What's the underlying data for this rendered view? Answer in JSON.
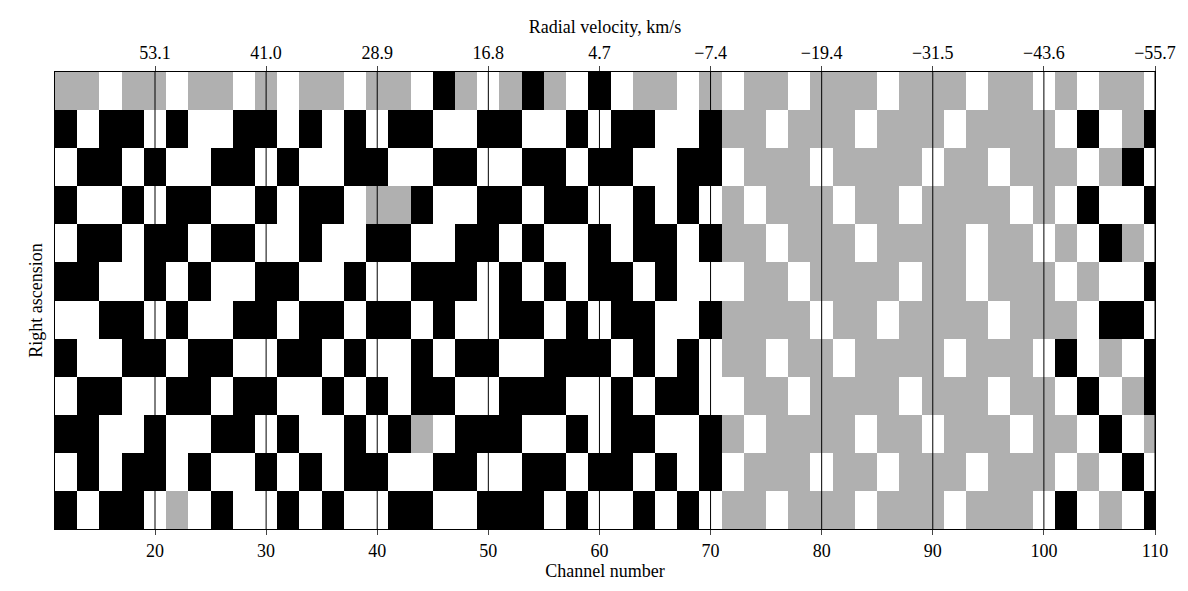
{
  "chart_data": {
    "type": "heatmap",
    "xlabel": "Channel number",
    "ylabel": "Right ascension",
    "x2label": "Radial velocity, km/s",
    "xlim": [
      11,
      110
    ],
    "xticks": [
      20,
      30,
      40,
      50,
      60,
      70,
      80,
      90,
      100,
      110
    ],
    "x2lim": [
      11,
      110
    ],
    "x2ticks": [
      {
        "value": 20,
        "label": "53.1"
      },
      {
        "value": 30,
        "label": "41.0"
      },
      {
        "value": 40,
        "label": "28.9"
      },
      {
        "value": 50,
        "label": "16.8"
      },
      {
        "value": 60,
        "label": "4.7"
      },
      {
        "value": 70,
        "label": "−7.4"
      },
      {
        "value": 80,
        "label": "−19.4"
      },
      {
        "value": 90,
        "label": "−31.5"
      },
      {
        "value": 100,
        "label": "−43.6"
      },
      {
        "value": 110,
        "label": "−55.7"
      }
    ],
    "ylim": [
      -0.5,
      11.5
    ],
    "tick_labels": "x",
    "grid": true,
    "zlim": [
      0,
      2
    ],
    "colors": [
      "#ffffff",
      "#b0b0b0",
      "#000000"
    ],
    "x": [
      12,
      14,
      16,
      18,
      20,
      22,
      24,
      26,
      28,
      30,
      32,
      34,
      36,
      38,
      40,
      42,
      44,
      46,
      48,
      50,
      52,
      54,
      56,
      58,
      60,
      62,
      64,
      66,
      68,
      70,
      72,
      74,
      76,
      78,
      80,
      82,
      84,
      86,
      88,
      90,
      92,
      94,
      96,
      98,
      100,
      102,
      104,
      106,
      108,
      110
    ],
    "y": [
      0,
      1,
      2,
      3,
      4,
      5,
      6,
      7,
      8,
      9,
      10,
      11
    ],
    "z": [
      [
        2,
        0,
        2,
        2,
        0,
        1,
        0,
        2,
        0,
        0,
        2,
        0,
        2,
        0,
        0,
        2,
        2,
        0,
        0,
        2,
        2,
        2,
        0,
        2,
        0,
        0,
        2,
        0,
        2,
        0,
        1,
        1,
        0,
        1,
        1,
        1,
        0,
        1,
        1,
        1,
        0,
        1,
        1,
        1,
        0,
        2,
        0,
        1,
        0,
        2
      ],
      [
        0,
        2,
        0,
        2,
        2,
        0,
        2,
        0,
        0,
        2,
        0,
        2,
        0,
        2,
        2,
        0,
        0,
        2,
        2,
        0,
        0,
        2,
        2,
        0,
        2,
        2,
        0,
        2,
        0,
        2,
        0,
        1,
        1,
        1,
        0,
        1,
        1,
        0,
        1,
        1,
        1,
        0,
        1,
        1,
        1,
        0,
        1,
        0,
        2,
        0
      ],
      [
        2,
        2,
        0,
        0,
        2,
        0,
        0,
        2,
        2,
        0,
        2,
        0,
        0,
        2,
        0,
        2,
        1,
        0,
        2,
        2,
        2,
        0,
        0,
        2,
        0,
        2,
        2,
        0,
        0,
        2,
        1,
        0,
        1,
        1,
        1,
        1,
        0,
        1,
        1,
        0,
        1,
        1,
        1,
        0,
        1,
        1,
        0,
        2,
        0,
        1
      ],
      [
        0,
        2,
        2,
        0,
        0,
        2,
        2,
        0,
        2,
        2,
        0,
        0,
        2,
        0,
        2,
        0,
        2,
        2,
        0,
        0,
        2,
        2,
        2,
        0,
        0,
        2,
        0,
        2,
        2,
        0,
        0,
        1,
        1,
        0,
        1,
        1,
        1,
        1,
        0,
        1,
        1,
        1,
        0,
        1,
        1,
        0,
        2,
        0,
        1,
        2
      ],
      [
        2,
        0,
        0,
        2,
        2,
        0,
        2,
        2,
        0,
        0,
        2,
        2,
        0,
        2,
        0,
        0,
        2,
        0,
        2,
        2,
        0,
        0,
        2,
        2,
        2,
        0,
        2,
        0,
        2,
        0,
        1,
        1,
        0,
        1,
        1,
        0,
        1,
        1,
        1,
        1,
        0,
        1,
        1,
        1,
        0,
        2,
        0,
        1,
        0,
        2
      ],
      [
        0,
        0,
        2,
        2,
        0,
        2,
        0,
        0,
        2,
        2,
        0,
        2,
        2,
        0,
        2,
        2,
        0,
        2,
        0,
        0,
        2,
        2,
        0,
        2,
        0,
        2,
        2,
        0,
        0,
        2,
        1,
        1,
        1,
        1,
        0,
        1,
        1,
        0,
        1,
        1,
        1,
        1,
        0,
        1,
        1,
        1,
        0,
        2,
        2,
        0
      ],
      [
        2,
        2,
        0,
        0,
        2,
        0,
        2,
        0,
        0,
        2,
        2,
        0,
        0,
        2,
        0,
        0,
        2,
        2,
        2,
        0,
        2,
        0,
        2,
        0,
        2,
        2,
        0,
        2,
        0,
        0,
        0,
        1,
        1,
        0,
        1,
        1,
        1,
        1,
        0,
        1,
        1,
        0,
        1,
        1,
        1,
        0,
        1,
        0,
        0,
        2
      ],
      [
        0,
        2,
        2,
        0,
        2,
        2,
        0,
        2,
        2,
        0,
        0,
        2,
        0,
        0,
        2,
        2,
        0,
        0,
        2,
        2,
        0,
        2,
        0,
        0,
        2,
        0,
        2,
        2,
        0,
        2,
        1,
        1,
        0,
        1,
        1,
        1,
        0,
        1,
        1,
        1,
        1,
        0,
        1,
        1,
        0,
        1,
        0,
        2,
        1,
        0
      ],
      [
        2,
        0,
        0,
        2,
        0,
        2,
        2,
        0,
        0,
        2,
        0,
        2,
        2,
        0,
        1,
        1,
        2,
        0,
        0,
        2,
        2,
        0,
        2,
        2,
        0,
        0,
        2,
        0,
        2,
        0,
        1,
        0,
        1,
        1,
        1,
        0,
        1,
        1,
        0,
        1,
        1,
        1,
        1,
        0,
        1,
        0,
        2,
        0,
        0,
        2
      ],
      [
        0,
        2,
        2,
        0,
        2,
        0,
        0,
        2,
        2,
        0,
        2,
        0,
        0,
        2,
        2,
        0,
        0,
        2,
        2,
        0,
        0,
        2,
        2,
        0,
        2,
        2,
        0,
        0,
        2,
        2,
        0,
        1,
        1,
        1,
        0,
        1,
        1,
        1,
        1,
        0,
        1,
        1,
        0,
        1,
        1,
        1,
        0,
        1,
        2,
        0
      ],
      [
        2,
        0,
        2,
        2,
        0,
        2,
        0,
        0,
        2,
        2,
        0,
        2,
        0,
        2,
        0,
        2,
        2,
        0,
        0,
        2,
        2,
        0,
        0,
        2,
        0,
        2,
        2,
        0,
        0,
        2,
        1,
        1,
        0,
        1,
        1,
        1,
        0,
        1,
        1,
        1,
        0,
        1,
        1,
        1,
        1,
        0,
        2,
        0,
        1,
        2
      ],
      [
        1,
        1,
        0,
        1,
        1,
        0,
        1,
        1,
        0,
        1,
        0,
        1,
        1,
        0,
        1,
        1,
        0,
        2,
        1,
        0,
        1,
        2,
        1,
        0,
        2,
        0,
        1,
        1,
        0,
        1,
        0,
        1,
        1,
        0,
        1,
        1,
        1,
        0,
        1,
        1,
        1,
        0,
        1,
        1,
        0,
        1,
        0,
        1,
        1,
        0
      ]
    ]
  }
}
